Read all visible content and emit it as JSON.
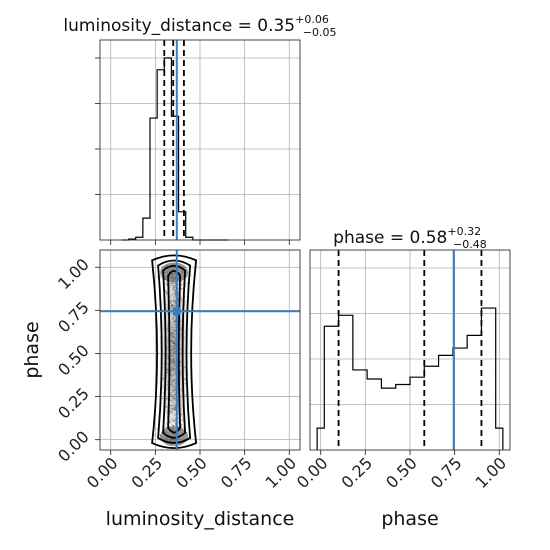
{
  "chart_data": {
    "type": "corner",
    "parameters": [
      "luminosity_distance",
      "phase"
    ],
    "truth": {
      "luminosity_distance": 0.37,
      "phase": 0.745
    },
    "ticks": [
      0.0,
      0.25,
      0.5,
      0.75,
      1.0
    ],
    "tick_labels": [
      "0.00",
      "0.25",
      "0.50",
      "0.75",
      "1.00"
    ],
    "grid": true,
    "panels": {
      "luminosity_distance_hist": {
        "title_main": "luminosity_distance = 0.35",
        "title_sup": "+0.06",
        "title_sub": "−0.05",
        "xlabel": "luminosity_distance",
        "xlim": [
          -0.06,
          1.06
        ],
        "ylim": [
          0,
          1.0
        ],
        "bin_edges": [
          0.06,
          0.1,
          0.14,
          0.18,
          0.22,
          0.26,
          0.3,
          0.34,
          0.38,
          0.42,
          0.46,
          0.5,
          0.54,
          0.58,
          0.62,
          0.66
        ],
        "counts": [
          0.0,
          0.005,
          0.015,
          0.12,
          0.67,
          0.935,
          1.0,
          0.68,
          0.155,
          0.015,
          0.0,
          0.0,
          0.0,
          0.0,
          0.0
        ],
        "quantiles": [
          0.3,
          0.35,
          0.41
        ]
      },
      "phase_hist": {
        "title_main": "phase = 0.58",
        "title_sup": "+0.32",
        "title_sub": "−0.48",
        "xlabel": "phase",
        "xlim": [
          -0.06,
          1.06
        ],
        "ylim": [
          0,
          1.0
        ],
        "bin_edges": [
          -0.02,
          0.02,
          0.06,
          0.1,
          0.14,
          0.18,
          0.22,
          0.26,
          0.3,
          0.34,
          0.38,
          0.42,
          0.46,
          0.5,
          0.54,
          0.58,
          0.62,
          0.66,
          0.7,
          0.74,
          0.78,
          0.82,
          0.86,
          0.9,
          0.94,
          0.98,
          1.02
        ],
        "counts": [
          0.12,
          0.68,
          0.68,
          0.74,
          0.74,
          0.44,
          0.44,
          0.39,
          0.39,
          0.34,
          0.34,
          0.36,
          0.36,
          0.4,
          0.4,
          0.46,
          0.46,
          0.52,
          0.52,
          0.56,
          0.56,
          0.63,
          0.63,
          0.78,
          0.78,
          0.12
        ],
        "quantiles": [
          0.1,
          0.58,
          0.9
        ]
      },
      "joint": {
        "xlabel": "luminosity_distance",
        "ylabel": "phase",
        "xlim": [
          -0.06,
          1.06
        ],
        "ylim": [
          -0.06,
          1.1
        ],
        "density_center_x": 0.355
      }
    },
    "colors": {
      "truth": "#3a7ebf",
      "line": "#000000",
      "grid": "#b0b0b0"
    }
  }
}
